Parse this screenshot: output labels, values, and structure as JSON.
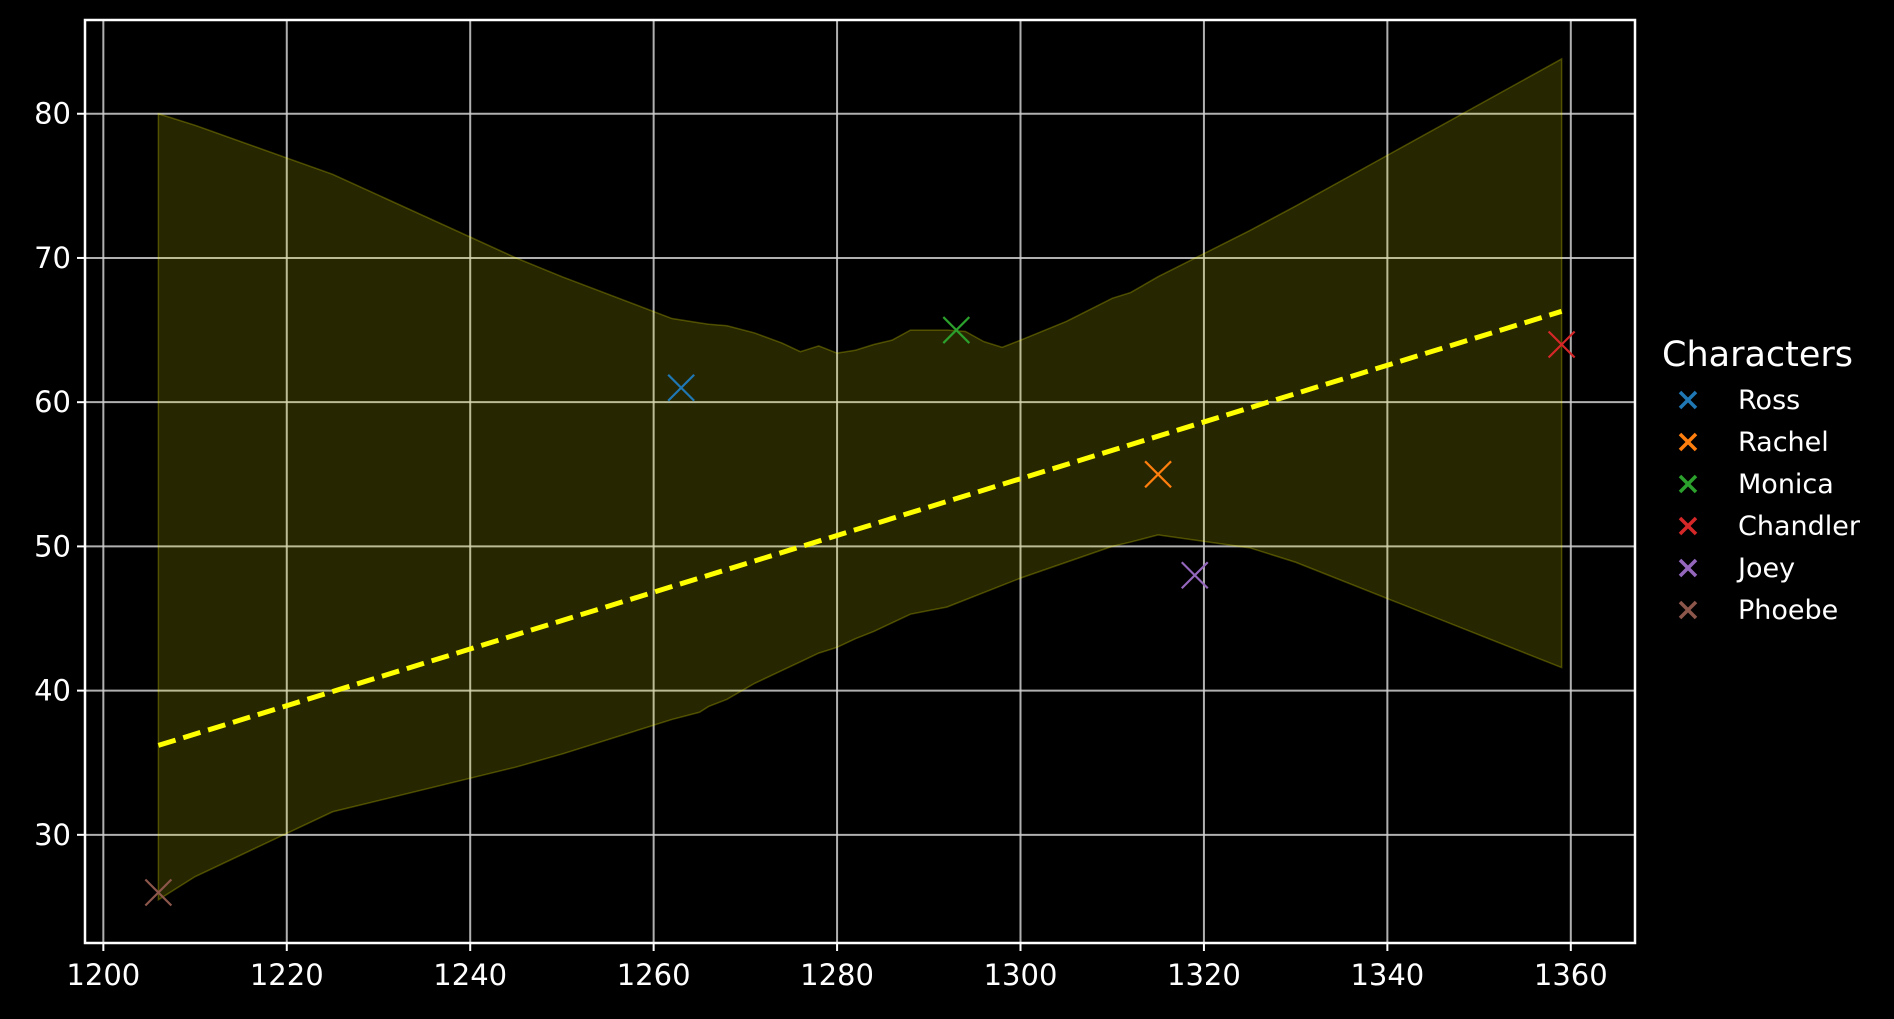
{
  "chart_data": {
    "type": "scatter",
    "title": "",
    "xlabel": "",
    "ylabel": "",
    "xlim": [
      1198,
      1367
    ],
    "ylim": [
      22.5,
      86.5
    ],
    "xticks": [
      1200,
      1220,
      1240,
      1260,
      1280,
      1300,
      1320,
      1340,
      1360
    ],
    "yticks": [
      30,
      40,
      50,
      60,
      70,
      80
    ],
    "grid": true,
    "background": "#000000",
    "legend": {
      "title": "Characters",
      "placement": "right"
    },
    "series": [
      {
        "name": "Ross",
        "color": "#1f77b4",
        "x": [
          1263
        ],
        "y": [
          61
        ]
      },
      {
        "name": "Rachel",
        "color": "#ff7f0e",
        "x": [
          1315
        ],
        "y": [
          55
        ]
      },
      {
        "name": "Monica",
        "color": "#2ca02c",
        "x": [
          1293
        ],
        "y": [
          65
        ]
      },
      {
        "name": "Chandler",
        "color": "#d62728",
        "x": [
          1359
        ],
        "y": [
          64
        ]
      },
      {
        "name": "Joey",
        "color": "#9467bd",
        "x": [
          1319
        ],
        "y": [
          48
        ]
      },
      {
        "name": "Phoebe",
        "color": "#8c564b",
        "x": [
          1206
        ],
        "y": [
          26
        ]
      }
    ],
    "regression_line": {
      "color": "#ffff00",
      "style": "dashed",
      "x": [
        1206,
        1359
      ],
      "y": [
        36.2,
        66.3
      ]
    },
    "confidence_band": {
      "color": "#ffff00",
      "opacity": 0.15,
      "x": [
        1206,
        1210,
        1225,
        1245,
        1250,
        1262,
        1265,
        1266,
        1268,
        1271,
        1274,
        1276,
        1278,
        1280,
        1282,
        1284,
        1286,
        1288,
        1292,
        1294,
        1296,
        1298,
        1300,
        1305,
        1310,
        1312,
        1315,
        1325,
        1330,
        1359
      ],
      "upper": [
        80,
        79.2,
        75.8,
        70,
        68.7,
        65.8,
        65.5,
        65.4,
        65.3,
        64.8,
        64.1,
        63.5,
        63.9,
        63.4,
        63.6,
        64,
        64.3,
        65.0,
        65.0,
        64.9,
        64.2,
        63.8,
        64.3,
        65.6,
        67.2,
        67.6,
        68.7,
        71.9,
        73.6,
        83.8
      ],
      "lower": [
        25.5,
        27.1,
        31.6,
        34.7,
        35.6,
        38,
        38.5,
        38.9,
        39.4,
        40.5,
        41.4,
        42,
        42.6,
        43,
        43.6,
        44.1,
        44.7,
        45.3,
        45.8,
        46.3,
        46.8,
        47.3,
        47.8,
        48.9,
        50.0,
        50.3,
        50.8,
        49.9,
        48.9,
        41.6
      ]
    }
  }
}
